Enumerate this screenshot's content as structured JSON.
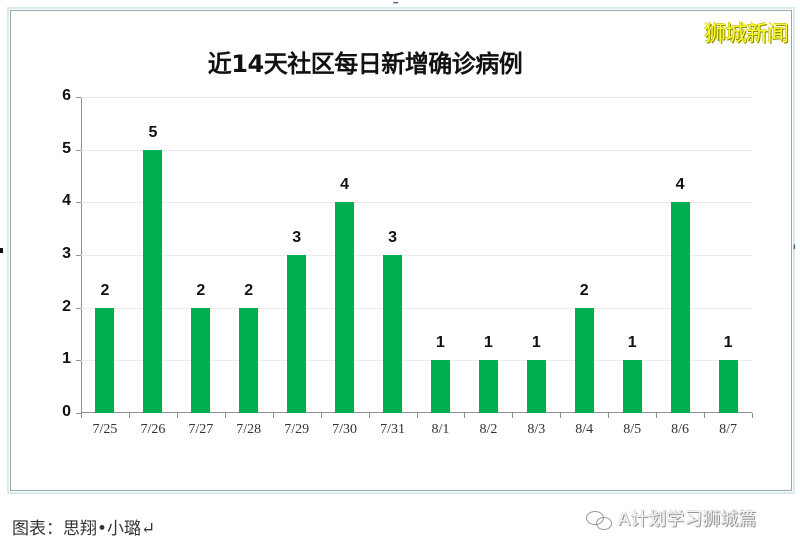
{
  "watermark_top": "狮城新闻",
  "chart_data": {
    "type": "bar",
    "title": "近14天社区每日新增确诊病例",
    "xlabel": "",
    "ylabel": "",
    "ylim": [
      0,
      6
    ],
    "yticks": [
      "0",
      "1",
      "2",
      "3",
      "4",
      "5",
      "6"
    ],
    "grid": true,
    "legend": null,
    "bar_color": "#00b050",
    "categories": [
      "7/25",
      "7/26",
      "7/27",
      "7/28",
      "7/29",
      "7/30",
      "7/31",
      "8/1",
      "8/2",
      "8/3",
      "8/4",
      "8/5",
      "8/6",
      "8/7"
    ],
    "values": [
      2,
      5,
      2,
      2,
      3,
      4,
      3,
      1,
      1,
      1,
      2,
      1,
      4,
      1
    ],
    "value_labels": [
      "2",
      "5",
      "2",
      "2",
      "3",
      "4",
      "3",
      "1",
      "1",
      "1",
      "2",
      "1",
      "4",
      "1"
    ]
  },
  "caption": "图表：思翔•小璐↵",
  "watermark_bottom": {
    "icon": "wechat-icon",
    "text": "A计划学习狮城篇"
  }
}
